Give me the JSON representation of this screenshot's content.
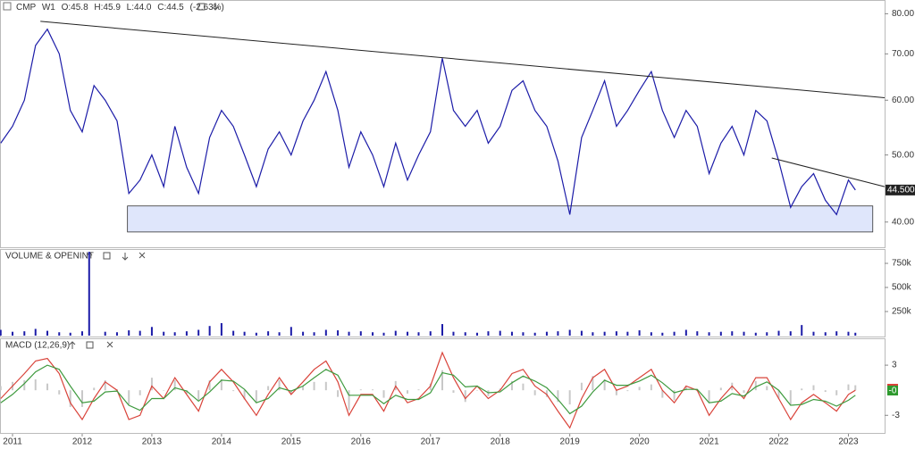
{
  "chart_data": [
    {
      "type": "line",
      "title": "CMP",
      "interval": "W1",
      "ohlc": [
        "O:45.8",
        "H:45.9",
        "L:44.0",
        "C:44.5",
        "(-2.63%)"
      ],
      "log": true,
      "grid": false,
      "xlim": [
        2010.82,
        2023.52
      ],
      "xticks": [
        2011,
        2012,
        2013,
        2014,
        2015,
        2016,
        2017,
        2018,
        2019,
        2020,
        2021,
        2022,
        2023
      ],
      "ylim": [
        37,
        83
      ],
      "yticks": [
        {
          "value": 40,
          "label": "40.00"
        },
        {
          "value": 50,
          "label": "50.00"
        },
        {
          "value": 60,
          "label": "60.00"
        },
        {
          "value": 70,
          "label": "70.00"
        },
        {
          "value": 80,
          "label": "80.00"
        }
      ],
      "x": [
        2010.83,
        2011.0,
        2011.17,
        2011.33,
        2011.5,
        2011.67,
        2011.83,
        2012.0,
        2012.17,
        2012.33,
        2012.5,
        2012.67,
        2012.83,
        2013.0,
        2013.17,
        2013.33,
        2013.5,
        2013.67,
        2013.83,
        2014.0,
        2014.17,
        2014.33,
        2014.5,
        2014.67,
        2014.83,
        2015.0,
        2015.17,
        2015.33,
        2015.5,
        2015.67,
        2015.83,
        2016.0,
        2016.17,
        2016.33,
        2016.5,
        2016.67,
        2016.83,
        2017.0,
        2017.17,
        2017.33,
        2017.5,
        2017.67,
        2017.83,
        2018.0,
        2018.17,
        2018.33,
        2018.5,
        2018.67,
        2018.83,
        2019.0,
        2019.17,
        2019.33,
        2019.5,
        2019.67,
        2019.83,
        2020.0,
        2020.17,
        2020.33,
        2020.5,
        2020.67,
        2020.83,
        2021.0,
        2021.17,
        2021.33,
        2021.5,
        2021.67,
        2021.83,
        2022.0,
        2022.17,
        2022.33,
        2022.5,
        2022.67,
        2022.83,
        2023.0,
        2023.1
      ],
      "series": [
        {
          "color": "#1c1ca8",
          "values": [
            52,
            55,
            60,
            72,
            76,
            70,
            58,
            54,
            63,
            60,
            56,
            44,
            46,
            50,
            45,
            55,
            48,
            44,
            53,
            58,
            55,
            50,
            45,
            51,
            54,
            50,
            56,
            60,
            66,
            58,
            48,
            54,
            50,
            45,
            52,
            46,
            50,
            54,
            69,
            58,
            55,
            58,
            52,
            55,
            62,
            64,
            58,
            55,
            49,
            41,
            53,
            58,
            64,
            55,
            58,
            62,
            66,
            58,
            53,
            58,
            55,
            47,
            52,
            55,
            50,
            58,
            56,
            49,
            42,
            45,
            47,
            43,
            41,
            46,
            44.5
          ]
        }
      ],
      "trendlines": [
        {
          "x": [
            2011.4,
            2023.52
          ],
          "y": [
            78,
            60.5
          ]
        },
        {
          "x": [
            2021.9,
            2023.52
          ],
          "y": [
            49.5,
            45
          ]
        }
      ],
      "zone": {
        "x": [
          2012.65,
          2023.35
        ],
        "y": [
          38.7,
          42.2
        ],
        "color": "#dfe6fb"
      },
      "last_price": {
        "value": 44.5,
        "label": "44.5000"
      }
    },
    {
      "type": "bar",
      "title": "VOLUME & OPENINT",
      "color": "#1c1ca8",
      "grid": false,
      "xlim": [
        2010.82,
        2023.52
      ],
      "ylim": [
        0,
        880000
      ],
      "yticks": [
        {
          "value": 250000,
          "label": "250k"
        },
        {
          "value": 500000,
          "label": "500k"
        },
        {
          "value": 750000,
          "label": "750k"
        }
      ],
      "x": [
        2010.83,
        2011.0,
        2011.17,
        2011.33,
        2011.5,
        2011.67,
        2011.83,
        2012.0,
        2012.1,
        2012.33,
        2012.5,
        2012.67,
        2012.83,
        2013.0,
        2013.17,
        2013.33,
        2013.5,
        2013.67,
        2013.83,
        2014.0,
        2014.17,
        2014.33,
        2014.5,
        2014.67,
        2014.83,
        2015.0,
        2015.17,
        2015.33,
        2015.5,
        2015.67,
        2015.83,
        2016.0,
        2016.17,
        2016.33,
        2016.5,
        2016.67,
        2016.83,
        2017.0,
        2017.17,
        2017.33,
        2017.5,
        2017.67,
        2017.83,
        2018.0,
        2018.17,
        2018.33,
        2018.5,
        2018.67,
        2018.83,
        2019.0,
        2019.17,
        2019.33,
        2019.5,
        2019.67,
        2019.83,
        2020.0,
        2020.17,
        2020.33,
        2020.5,
        2020.67,
        2020.83,
        2021.0,
        2021.17,
        2021.33,
        2021.5,
        2021.67,
        2021.83,
        2022.0,
        2022.17,
        2022.33,
        2022.5,
        2022.67,
        2022.83,
        2023.0,
        2023.1
      ],
      "values": [
        60000,
        40000,
        45000,
        70000,
        50000,
        35000,
        30000,
        45000,
        870000,
        40000,
        35000,
        55000,
        50000,
        90000,
        40000,
        35000,
        45000,
        60000,
        100000,
        130000,
        50000,
        40000,
        30000,
        45000,
        35000,
        90000,
        40000,
        35000,
        60000,
        55000,
        40000,
        45000,
        35000,
        30000,
        50000,
        40000,
        35000,
        45000,
        120000,
        40000,
        35000,
        30000,
        45000,
        50000,
        40000,
        35000,
        30000,
        40000,
        45000,
        60000,
        50000,
        35000,
        40000,
        45000,
        40000,
        55000,
        35000,
        30000,
        40000,
        60000,
        45000,
        35000,
        40000,
        45000,
        40000,
        30000,
        35000,
        50000,
        45000,
        110000,
        40000,
        35000,
        45000,
        40000,
        30000
      ]
    },
    {
      "type": "line",
      "title": "MACD (12,26,9)",
      "grid": false,
      "xlim": [
        2010.82,
        2023.52
      ],
      "ylim": [
        -5,
        6
      ],
      "yticks": [
        -3,
        3
      ],
      "last_label": "-0",
      "x": [
        2010.83,
        2011.0,
        2011.17,
        2011.33,
        2011.5,
        2011.67,
        2011.83,
        2012.0,
        2012.17,
        2012.33,
        2012.5,
        2012.67,
        2012.83,
        2013.0,
        2013.17,
        2013.33,
        2013.5,
        2013.67,
        2013.83,
        2014.0,
        2014.17,
        2014.33,
        2014.5,
        2014.67,
        2014.83,
        2015.0,
        2015.17,
        2015.33,
        2015.5,
        2015.67,
        2015.83,
        2016.0,
        2016.17,
        2016.33,
        2016.5,
        2016.67,
        2016.83,
        2017.0,
        2017.17,
        2017.33,
        2017.5,
        2017.67,
        2017.83,
        2018.0,
        2018.17,
        2018.33,
        2018.5,
        2018.67,
        2018.83,
        2019.0,
        2019.17,
        2019.33,
        2019.5,
        2019.67,
        2019.83,
        2020.0,
        2020.17,
        2020.33,
        2020.5,
        2020.67,
        2020.83,
        2021.0,
        2021.17,
        2021.33,
        2021.5,
        2021.67,
        2021.83,
        2022.0,
        2022.17,
        2022.33,
        2022.5,
        2022.67,
        2022.83,
        2023.0,
        2023.1
      ],
      "series": [
        {
          "color": "#c8c8c8",
          "kind": "bar",
          "values": [
            0.5,
            1.0,
            1.2,
            1.3,
            0.8,
            -0.5,
            -2.0,
            -2.0,
            0.3,
            1.2,
            0.1,
            -1.7,
            -0.6,
            1.5,
            0,
            1.2,
            -0.4,
            -1.2,
            1.2,
            1.3,
            -0.1,
            -1.1,
            -1.5,
            0.5,
            1.2,
            -0.4,
            0.5,
            1.0,
            1.0,
            -0.8,
            -2.4,
            0.1,
            0.1,
            -0.9,
            1.1,
            -0.4,
            0.1,
            0.8,
            2.4,
            -0.3,
            -1.4,
            0,
            -0.7,
            0.2,
            1.1,
            0.8,
            -0.6,
            -0.8,
            -1.4,
            -1.7,
            0.9,
            1.7,
            1.3,
            -0.6,
            -0.1,
            0.4,
            0.7,
            -0.9,
            -1.2,
            0.4,
            -0.1,
            -1.5,
            0.3,
            0.9,
            -0.3,
            1.1,
            0.5,
            -1.0,
            -1.7,
            0.2,
            0.6,
            -0.2,
            -0.6,
            0.7,
            0.6
          ]
        },
        {
          "color": "#d9433a",
          "kind": "line",
          "values": [
            -1,
            0.5,
            2,
            3.5,
            3.8,
            2,
            -1.5,
            -3.5,
            -1,
            1,
            0,
            -3.5,
            -3,
            0.5,
            -1,
            1.5,
            -0.5,
            -2.5,
            1,
            2.5,
            1,
            -1,
            -3,
            -0.5,
            1.5,
            -0.5,
            1,
            2.5,
            3.5,
            1,
            -3,
            -0.5,
            -0.5,
            -2.5,
            0.5,
            -1.5,
            -1,
            0.5,
            4.5,
            1.5,
            -1,
            0.5,
            -1,
            0,
            2,
            2.5,
            0.5,
            -0.5,
            -2.5,
            -4.5,
            -1,
            1.5,
            2.5,
            0,
            0.5,
            1.5,
            2.5,
            0,
            -1.5,
            0.5,
            0,
            -3,
            -1,
            0.5,
            -1,
            1.5,
            1.5,
            -1,
            -3.5,
            -1.5,
            -0.5,
            -1.5,
            -2.5,
            -0.5,
            0
          ]
        },
        {
          "color": "#3e9a3e",
          "kind": "line",
          "values": [
            -1.5,
            -0.5,
            0.8,
            2.2,
            3.0,
            2.5,
            0.5,
            -1.5,
            -1.3,
            -0.2,
            -0.1,
            -1.8,
            -2.4,
            -1.0,
            -1.0,
            0.3,
            -0.1,
            -1.3,
            -0.2,
            1.2,
            1.1,
            0.1,
            -1.5,
            -1.0,
            0.3,
            -0.1,
            0.5,
            1.5,
            2.5,
            1.8,
            -0.6,
            -0.6,
            -0.6,
            -1.6,
            -0.6,
            -1.1,
            -1.1,
            -0.3,
            2.1,
            1.8,
            0.4,
            0.5,
            -0.3,
            -0.2,
            0.9,
            1.7,
            1.1,
            0.3,
            -1.1,
            -2.8,
            -1.9,
            -0.2,
            1.2,
            0.6,
            0.6,
            1.1,
            1.8,
            0.9,
            -0.3,
            0.1,
            0.1,
            -1.5,
            -1.3,
            -0.4,
            -0.7,
            0.4,
            1.0,
            0,
            -1.8,
            -1.7,
            -1.1,
            -1.3,
            -1.9,
            -1.2,
            -0.6
          ]
        }
      ]
    }
  ]
}
